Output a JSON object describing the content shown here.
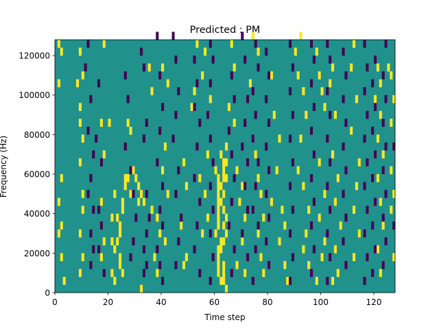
{
  "chart_data": {
    "type": "heatmap",
    "title": "Predicted : PM",
    "xlabel": "Time step",
    "ylabel": "Frequency (Hz)",
    "xlim": [
      0,
      128
    ],
    "ylim": [
      0,
      128000
    ],
    "grid": false,
    "colors": {
      "background": "#21918c",
      "high": "#fde725",
      "low": "#440154"
    },
    "x_ticks": [
      0,
      20,
      40,
      60,
      80,
      100,
      120
    ],
    "x_tick_labels": [
      "0",
      "20",
      "40",
      "60",
      "80",
      "100",
      "120"
    ],
    "y_ticks": [
      0,
      20000,
      40000,
      60000,
      80000,
      100000,
      120000
    ],
    "y_tick_labels": [
      "0",
      "20000",
      "40000",
      "60000",
      "80000",
      "100000",
      "120000"
    ],
    "high_cells": [
      [
        1,
        124000
      ],
      [
        2,
        120000
      ],
      [
        1,
        104000
      ],
      [
        2,
        56000
      ],
      [
        1,
        44000
      ],
      [
        2,
        32000
      ],
      [
        1,
        28000
      ],
      [
        2,
        16000
      ],
      [
        3,
        4000
      ],
      [
        9,
        120000
      ],
      [
        10,
        108000
      ],
      [
        8,
        104000
      ],
      [
        9,
        92000
      ],
      [
        9,
        84000
      ],
      [
        10,
        76000
      ],
      [
        9,
        64000
      ],
      [
        10,
        48000
      ],
      [
        10,
        40000
      ],
      [
        9,
        28000
      ],
      [
        10,
        16000
      ],
      [
        9,
        8000
      ],
      [
        18,
        124000
      ],
      [
        17,
        84000
      ],
      [
        18,
        68000
      ],
      [
        17,
        44000
      ],
      [
        18,
        24000
      ],
      [
        17,
        16000
      ],
      [
        20,
        84000
      ],
      [
        22,
        48000
      ],
      [
        21,
        36000
      ],
      [
        21,
        24000
      ],
      [
        22,
        20000
      ],
      [
        21,
        8000
      ],
      [
        22,
        4000
      ],
      [
        23,
        36000
      ],
      [
        24,
        32000
      ],
      [
        24,
        28000
      ],
      [
        23,
        24000
      ],
      [
        25,
        40000
      ],
      [
        25,
        44000
      ],
      [
        26,
        56000
      ],
      [
        26,
        52000
      ],
      [
        25,
        8000
      ],
      [
        24,
        12000
      ],
      [
        24,
        16000
      ],
      [
        27,
        84000
      ],
      [
        28,
        80000
      ],
      [
        27,
        56000
      ],
      [
        28,
        48000
      ],
      [
        29,
        60000
      ],
      [
        30,
        56000
      ],
      [
        31,
        52000
      ],
      [
        32,
        48000
      ],
      [
        31,
        44000
      ],
      [
        33,
        44000
      ],
      [
        32,
        0
      ],
      [
        35,
        112000
      ],
      [
        36,
        100000
      ],
      [
        36,
        40000
      ],
      [
        38,
        36000
      ],
      [
        39,
        28000
      ],
      [
        37,
        16000
      ],
      [
        38,
        8000
      ],
      [
        40,
        112000
      ],
      [
        42,
        104000
      ],
      [
        41,
        72000
      ],
      [
        40,
        60000
      ],
      [
        42,
        48000
      ],
      [
        41,
        24000
      ],
      [
        48,
        64000
      ],
      [
        49,
        52000
      ],
      [
        47,
        32000
      ],
      [
        49,
        16000
      ],
      [
        48,
        12000
      ],
      [
        51,
        92000
      ],
      [
        52,
        100000
      ],
      [
        53,
        124000
      ],
      [
        54,
        56000
      ],
      [
        56,
        120000
      ],
      [
        55,
        108000
      ],
      [
        57,
        88000
      ],
      [
        58,
        96000
      ],
      [
        57,
        68000
      ],
      [
        56,
        48000
      ],
      [
        57,
        36000
      ],
      [
        55,
        28000
      ],
      [
        60,
        60000
      ],
      [
        61,
        56000
      ],
      [
        61,
        52000
      ],
      [
        61,
        48000
      ],
      [
        61,
        44000
      ],
      [
        61,
        40000
      ],
      [
        61,
        36000
      ],
      [
        61,
        32000
      ],
      [
        60,
        28000
      ],
      [
        62,
        24000
      ],
      [
        61,
        20000
      ],
      [
        61,
        16000
      ],
      [
        61,
        12000
      ],
      [
        61,
        8000
      ],
      [
        62,
        4000
      ],
      [
        62,
        68000
      ],
      [
        63,
        64000
      ],
      [
        63,
        60000
      ],
      [
        63,
        56000
      ],
      [
        62,
        52000
      ],
      [
        63,
        48000
      ],
      [
        62,
        44000
      ],
      [
        63,
        40000
      ],
      [
        64,
        36000
      ],
      [
        63,
        32000
      ],
      [
        64,
        28000
      ],
      [
        63,
        24000
      ],
      [
        62,
        20000
      ],
      [
        63,
        12000
      ],
      [
        63,
        8000
      ],
      [
        63,
        4000
      ],
      [
        64,
        0
      ],
      [
        64,
        56000
      ],
      [
        64,
        64000
      ],
      [
        64,
        72000
      ],
      [
        66,
        124000
      ],
      [
        67,
        112000
      ],
      [
        65,
        92000
      ],
      [
        67,
        84000
      ],
      [
        68,
        60000
      ],
      [
        70,
        52000
      ],
      [
        69,
        44000
      ],
      [
        71,
        36000
      ],
      [
        70,
        24000
      ],
      [
        68,
        12000
      ],
      [
        71,
        8000
      ],
      [
        74,
        128000
      ],
      [
        76,
        120000
      ],
      [
        73,
        104000
      ],
      [
        75,
        68000
      ],
      [
        76,
        56000
      ],
      [
        77,
        48000
      ],
      [
        78,
        36000
      ],
      [
        76,
        28000
      ],
      [
        77,
        16000
      ],
      [
        78,
        8000
      ],
      [
        81,
        108000
      ],
      [
        82,
        88000
      ],
      [
        84,
        76000
      ],
      [
        83,
        60000
      ],
      [
        81,
        44000
      ],
      [
        85,
        40000
      ],
      [
        86,
        32000
      ],
      [
        84,
        24000
      ],
      [
        86,
        12000
      ],
      [
        87,
        4000
      ],
      [
        92,
        128000
      ],
      [
        90,
        120000
      ],
      [
        91,
        108000
      ],
      [
        93,
        100000
      ],
      [
        94,
        88000
      ],
      [
        92,
        76000
      ],
      [
        91,
        60000
      ],
      [
        93,
        52000
      ],
      [
        95,
        40000
      ],
      [
        94,
        28000
      ],
      [
        93,
        20000
      ],
      [
        95,
        12000
      ],
      [
        98,
        120000
      ],
      [
        99,
        108000
      ],
      [
        100,
        100000
      ],
      [
        101,
        92000
      ],
      [
        99,
        64000
      ],
      [
        101,
        48000
      ],
      [
        99,
        36000
      ],
      [
        101,
        24000
      ],
      [
        100,
        16000
      ],
      [
        98,
        4000
      ],
      [
        104,
        112000
      ],
      [
        103,
        104000
      ],
      [
        105,
        88000
      ],
      [
        104,
        68000
      ],
      [
        106,
        56000
      ],
      [
        105,
        44000
      ],
      [
        107,
        32000
      ],
      [
        105,
        20000
      ],
      [
        106,
        8000
      ],
      [
        104,
        4000
      ],
      [
        112,
        124000
      ],
      [
        111,
        112000
      ],
      [
        113,
        96000
      ],
      [
        111,
        80000
      ],
      [
        114,
        64000
      ],
      [
        113,
        52000
      ],
      [
        112,
        40000
      ],
      [
        114,
        28000
      ],
      [
        112,
        16000
      ],
      [
        121,
        112000
      ],
      [
        122,
        104000
      ],
      [
        120,
        96000
      ],
      [
        122,
        88000
      ],
      [
        121,
        76000
      ],
      [
        123,
        68000
      ],
      [
        121,
        56000
      ],
      [
        122,
        44000
      ],
      [
        123,
        32000
      ],
      [
        121,
        20000
      ],
      [
        122,
        8000
      ],
      [
        125,
        112000
      ],
      [
        126,
        108000
      ],
      [
        127,
        96000
      ],
      [
        126,
        84000
      ],
      [
        127,
        72000
      ],
      [
        126,
        60000
      ],
      [
        127,
        48000
      ],
      [
        126,
        40000
      ],
      [
        127,
        16000
      ]
    ],
    "low_cells": [
      [
        12,
        124000
      ],
      [
        11,
        112000
      ],
      [
        13,
        96000
      ],
      [
        12,
        80000
      ],
      [
        14,
        68000
      ],
      [
        13,
        56000
      ],
      [
        12,
        48000
      ],
      [
        14,
        40000
      ],
      [
        13,
        28000
      ],
      [
        14,
        20000
      ],
      [
        13,
        12000
      ],
      [
        15,
        76000
      ],
      [
        16,
        104000
      ],
      [
        17,
        64000
      ],
      [
        16,
        40000
      ],
      [
        17,
        32000
      ],
      [
        16,
        20000
      ],
      [
        18,
        8000
      ],
      [
        26,
        108000
      ],
      [
        27,
        96000
      ],
      [
        26,
        72000
      ],
      [
        28,
        60000
      ],
      [
        29,
        48000
      ],
      [
        30,
        36000
      ],
      [
        29,
        24000
      ],
      [
        28,
        16000
      ],
      [
        32,
        120000
      ],
      [
        33,
        112000
      ],
      [
        34,
        84000
      ],
      [
        33,
        76000
      ],
      [
        34,
        48000
      ],
      [
        35,
        36000
      ],
      [
        34,
        28000
      ],
      [
        33,
        20000
      ],
      [
        34,
        12000
      ],
      [
        33,
        8000
      ],
      [
        38,
        128000
      ],
      [
        39,
        108000
      ],
      [
        40,
        92000
      ],
      [
        39,
        80000
      ],
      [
        38,
        64000
      ],
      [
        40,
        52000
      ],
      [
        39,
        40000
      ],
      [
        40,
        32000
      ],
      [
        38,
        20000
      ],
      [
        39,
        12000
      ],
      [
        40,
        4000
      ],
      [
        44,
        128000
      ],
      [
        45,
        116000
      ],
      [
        46,
        100000
      ],
      [
        45,
        88000
      ],
      [
        44,
        76000
      ],
      [
        46,
        60000
      ],
      [
        45,
        48000
      ],
      [
        47,
        36000
      ],
      [
        46,
        24000
      ],
      [
        45,
        12000
      ],
      [
        52,
        116000
      ],
      [
        53,
        104000
      ],
      [
        52,
        92000
      ],
      [
        54,
        84000
      ],
      [
        53,
        72000
      ],
      [
        52,
        56000
      ],
      [
        54,
        44000
      ],
      [
        53,
        32000
      ],
      [
        52,
        20000
      ],
      [
        54,
        8000
      ],
      [
        58,
        124000
      ],
      [
        59,
        116000
      ],
      [
        58,
        104000
      ],
      [
        57,
        88000
      ],
      [
        58,
        76000
      ],
      [
        59,
        64000
      ],
      [
        58,
        52000
      ],
      [
        59,
        40000
      ],
      [
        58,
        28000
      ],
      [
        59,
        16000
      ],
      [
        58,
        4000
      ],
      [
        66,
        108000
      ],
      [
        67,
        96000
      ],
      [
        65,
        80000
      ],
      [
        66,
        68000
      ],
      [
        67,
        56000
      ],
      [
        66,
        44000
      ],
      [
        65,
        32000
      ],
      [
        67,
        20000
      ],
      [
        66,
        8000
      ],
      [
        70,
        128000
      ],
      [
        71,
        116000
      ],
      [
        72,
        96000
      ],
      [
        71,
        84000
      ],
      [
        70,
        72000
      ],
      [
        72,
        64000
      ],
      [
        71,
        52000
      ],
      [
        72,
        40000
      ],
      [
        70,
        28000
      ],
      [
        72,
        16000
      ],
      [
        75,
        124000
      ],
      [
        76,
        112000
      ],
      [
        74,
        100000
      ],
      [
        75,
        88000
      ],
      [
        74,
        76000
      ],
      [
        76,
        64000
      ],
      [
        75,
        52000
      ],
      [
        74,
        40000
      ],
      [
        76,
        32000
      ],
      [
        75,
        20000
      ],
      [
        74,
        4000
      ],
      [
        79,
        120000
      ],
      [
        80,
        108000
      ],
      [
        79,
        96000
      ],
      [
        80,
        84000
      ],
      [
        79,
        72000
      ],
      [
        80,
        60000
      ],
      [
        79,
        48000
      ],
      [
        80,
        36000
      ],
      [
        79,
        24000
      ],
      [
        80,
        12000
      ],
      [
        88,
        124000
      ],
      [
        89,
        112000
      ],
      [
        88,
        100000
      ],
      [
        89,
        88000
      ],
      [
        88,
        76000
      ],
      [
        89,
        64000
      ],
      [
        88,
        52000
      ],
      [
        89,
        40000
      ],
      [
        88,
        28000
      ],
      [
        89,
        16000
      ],
      [
        88,
        4000
      ],
      [
        96,
        124000
      ],
      [
        97,
        116000
      ],
      [
        96,
        104000
      ],
      [
        97,
        92000
      ],
      [
        96,
        80000
      ],
      [
        97,
        68000
      ],
      [
        96,
        56000
      ],
      [
        97,
        44000
      ],
      [
        96,
        32000
      ],
      [
        97,
        20000
      ],
      [
        96,
        8000
      ],
      [
        102,
        124000
      ],
      [
        103,
        116000
      ],
      [
        102,
        100000
      ],
      [
        103,
        88000
      ],
      [
        102,
        76000
      ],
      [
        103,
        64000
      ],
      [
        102,
        52000
      ],
      [
        103,
        40000
      ],
      [
        102,
        28000
      ],
      [
        103,
        16000
      ],
      [
        102,
        4000
      ],
      [
        108,
        120000
      ],
      [
        109,
        108000
      ],
      [
        108,
        96000
      ],
      [
        109,
        84000
      ],
      [
        108,
        72000
      ],
      [
        109,
        60000
      ],
      [
        108,
        48000
      ],
      [
        109,
        36000
      ],
      [
        108,
        24000
      ],
      [
        109,
        12000
      ],
      [
        116,
        124000
      ],
      [
        117,
        112000
      ],
      [
        116,
        100000
      ],
      [
        117,
        88000
      ],
      [
        116,
        76000
      ],
      [
        117,
        64000
      ],
      [
        116,
        52000
      ],
      [
        117,
        40000
      ],
      [
        116,
        28000
      ],
      [
        117,
        16000
      ],
      [
        116,
        4000
      ],
      [
        120,
        116000
      ],
      [
        119,
        104000
      ],
      [
        120,
        92000
      ],
      [
        119,
        80000
      ],
      [
        120,
        68000
      ],
      [
        119,
        56000
      ],
      [
        120,
        44000
      ],
      [
        119,
        32000
      ],
      [
        120,
        20000
      ],
      [
        119,
        8000
      ],
      [
        124,
        124000
      ],
      [
        123,
        108000
      ],
      [
        124,
        96000
      ],
      [
        123,
        84000
      ],
      [
        124,
        72000
      ],
      [
        123,
        60000
      ],
      [
        124,
        48000
      ],
      [
        123,
        36000
      ],
      [
        124,
        24000
      ],
      [
        123,
        12000
      ],
      [
        127,
        32000
      ],
      [
        127,
        72000
      ]
    ]
  }
}
